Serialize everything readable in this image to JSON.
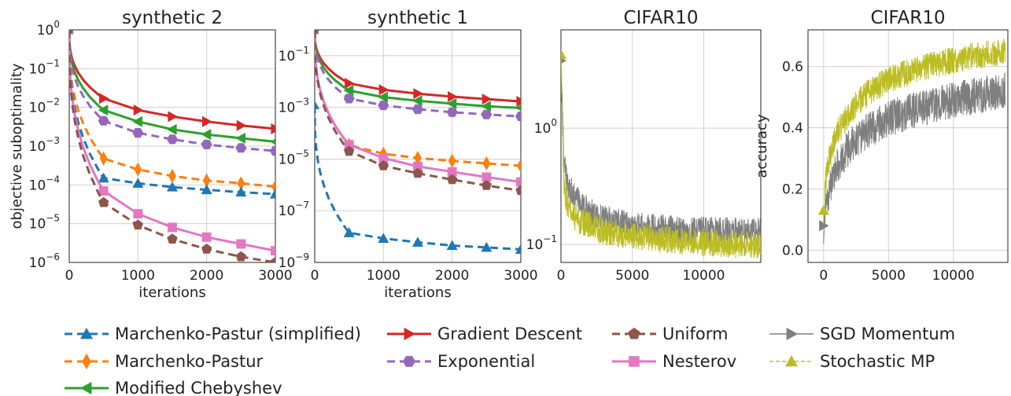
{
  "chart_data": [
    {
      "type": "line",
      "title": "synthetic 2",
      "xlabel": "iterations",
      "ylabel": "objective suboptimality",
      "yscale": "log",
      "xlim": [
        0,
        3000
      ],
      "ylim": [
        1e-06,
        1
      ],
      "xticks": [
        "0",
        "1000",
        "2000",
        "3000"
      ],
      "yticks": [
        {
          "base": "10",
          "exp": "0"
        },
        {
          "base": "10",
          "exp": "−1"
        },
        {
          "base": "10",
          "exp": "−2"
        },
        {
          "base": "10",
          "exp": "−3"
        },
        {
          "base": "10",
          "exp": "−4"
        },
        {
          "base": "10",
          "exp": "−5"
        },
        {
          "base": "10",
          "exp": "−6"
        }
      ],
      "grid": true,
      "x": [
        0,
        500,
        1000,
        1500,
        2000,
        2500,
        3000
      ],
      "series": [
        {
          "key": "gd",
          "values": [
            1.0,
            0.017,
            0.0085,
            0.0058,
            0.0043,
            0.0034,
            0.0028
          ]
        },
        {
          "key": "cheb",
          "values": [
            1.0,
            0.0085,
            0.0043,
            0.0027,
            0.002,
            0.0016,
            0.0013
          ]
        },
        {
          "key": "exp",
          "values": [
            1.0,
            0.0045,
            0.0022,
            0.0015,
            0.0011,
            0.0009,
            0.00075
          ]
        },
        {
          "key": "mp",
          "values": [
            1.0,
            0.00048,
            0.00025,
            0.00017,
            0.00013,
            0.00011,
            9e-05
          ]
        },
        {
          "key": "mps",
          "values": [
            1.0,
            0.00015,
            0.00011,
            8.8e-05,
            7.5e-05,
            6.5e-05,
            5.8e-05
          ]
        },
        {
          "key": "nest",
          "values": [
            1.0,
            7e-05,
            1.8e-05,
            8e-06,
            4.5e-06,
            3e-06,
            2e-06
          ]
        },
        {
          "key": "unif",
          "values": [
            1.0,
            3.5e-05,
            9.2e-06,
            4e-06,
            2.2e-06,
            1.4e-06,
            1e-06
          ]
        }
      ]
    },
    {
      "type": "line",
      "title": "synthetic 1",
      "xlabel": "iterations",
      "yscale": "log",
      "xlim": [
        0,
        3000
      ],
      "ylim": [
        1e-09,
        1
      ],
      "xticks": [
        "0",
        "1000",
        "2000",
        "3000"
      ],
      "yticks": [
        {
          "base": "10",
          "exp": "−1"
        },
        {
          "base": "10",
          "exp": "−3"
        },
        {
          "base": "10",
          "exp": "−5"
        },
        {
          "base": "10",
          "exp": "−7"
        },
        {
          "base": "10",
          "exp": "−9"
        }
      ],
      "grid": true,
      "x": [
        0,
        500,
        1000,
        1500,
        2000,
        2500,
        3000
      ],
      "series": [
        {
          "key": "gd",
          "values": [
            1.0,
            0.0085,
            0.0048,
            0.0034,
            0.0026,
            0.0021,
            0.0017
          ]
        },
        {
          "key": "cheb",
          "values": [
            1.0,
            0.0045,
            0.0025,
            0.0018,
            0.0014,
            0.0011,
            0.00095
          ]
        },
        {
          "key": "exp",
          "values": [
            1.0,
            0.0022,
            0.0012,
            0.00085,
            0.00065,
            0.00053,
            0.00045
          ]
        },
        {
          "key": "mp",
          "values": [
            1.0,
            3.5e-05,
            1.6e-05,
            1.1e-05,
            8.5e-06,
            6.8e-06,
            5.5e-06
          ]
        },
        {
          "key": "nest",
          "values": [
            1.0,
            3.6e-05,
            1.1e-05,
            5.2e-06,
            3.2e-06,
            2e-06,
            1.3e-06
          ]
        },
        {
          "key": "unif",
          "values": [
            1.0,
            2e-05,
            5.5e-06,
            2.8e-06,
            1.6e-06,
            9.5e-07,
            6e-07
          ]
        },
        {
          "key": "mps",
          "values": [
            0.0012,
            1.4e-08,
            8.5e-09,
            6e-09,
            4.5e-09,
            3.8e-09,
            3.2e-09
          ]
        }
      ]
    },
    {
      "type": "line",
      "title": "CIFAR10",
      "yscale": "log",
      "xlim": [
        0,
        14000
      ],
      "ylim": [
        0.07,
        7
      ],
      "xticks": [
        "0",
        "5000",
        "10000"
      ],
      "yticks": [
        {
          "base": "10",
          "exp": "0"
        },
        {
          "base": "10",
          "exp": "−1"
        }
      ],
      "grid": true,
      "series": [
        {
          "key": "sgdm",
          "x": [
            0,
            200,
            500,
            1000,
            2000,
            3000,
            5000,
            8000,
            11000,
            14000
          ],
          "values": [
            3.8,
            0.55,
            0.33,
            0.25,
            0.19,
            0.165,
            0.145,
            0.135,
            0.13,
            0.128
          ]
        },
        {
          "key": "smp",
          "x": [
            0,
            200,
            500,
            1000,
            2000,
            3000,
            5000,
            8000,
            11000,
            14000
          ],
          "values": [
            4.3,
            0.32,
            0.21,
            0.17,
            0.145,
            0.13,
            0.118,
            0.108,
            0.102,
            0.098
          ]
        }
      ]
    },
    {
      "type": "line",
      "title": "CIFAR10",
      "ylabel": "accuracy",
      "xlim": [
        -1200,
        14200
      ],
      "ylim": [
        -0.04,
        0.72
      ],
      "xticks": [
        "0",
        "5000",
        "10000"
      ],
      "yticks": [
        "0.0",
        "0.2",
        "0.4",
        "0.6"
      ],
      "grid": true,
      "series": [
        {
          "key": "sgdm",
          "x": [
            0,
            200,
            500,
            1000,
            2000,
            3000,
            5000,
            8000,
            11000,
            14000
          ],
          "values": [
            0.08,
            0.16,
            0.2,
            0.27,
            0.34,
            0.38,
            0.43,
            0.47,
            0.5,
            0.52
          ]
        },
        {
          "key": "smp",
          "x": [
            0,
            200,
            500,
            1000,
            2000,
            3000,
            5000,
            8000,
            11000,
            14000
          ],
          "values": [
            0.13,
            0.24,
            0.31,
            0.38,
            0.45,
            0.5,
            0.56,
            0.6,
            0.63,
            0.65
          ]
        }
      ]
    }
  ],
  "legend": [
    {
      "key": "mps",
      "label": "Marchenko-Pastur (simplified)",
      "color": "#1f77b4",
      "marker": "triangle-up",
      "dash": true
    },
    {
      "key": "mp",
      "label": "Marchenko-Pastur",
      "color": "#ff7f0e",
      "marker": "diamond",
      "dash": true
    },
    {
      "key": "cheb",
      "label": "Modified Chebyshev",
      "color": "#2ca02c",
      "marker": "triangle-left",
      "dash": false
    },
    {
      "key": "gd",
      "label": "Gradient Descent",
      "color": "#d62728",
      "marker": "triangle-right",
      "dash": false
    },
    {
      "key": "exp",
      "label": "Exponential",
      "color": "#9467bd",
      "marker": "hexagon",
      "dash": true
    },
    {
      "key": "unif",
      "label": "Uniform",
      "color": "#8c564b",
      "marker": "pentagon",
      "dash": true
    },
    {
      "key": "nest",
      "label": "Nesterov",
      "color": "#e377c2",
      "marker": "square",
      "dash": false
    },
    {
      "key": "sgdm",
      "label": "SGD Momentum",
      "color": "#7f7f7f",
      "marker": "triangle-right",
      "dash": false,
      "thin": true
    },
    {
      "key": "smp",
      "label": "Stochastic MP",
      "color": "#bcbd22",
      "marker": "triangle-up",
      "dash": true,
      "thin": true
    }
  ]
}
